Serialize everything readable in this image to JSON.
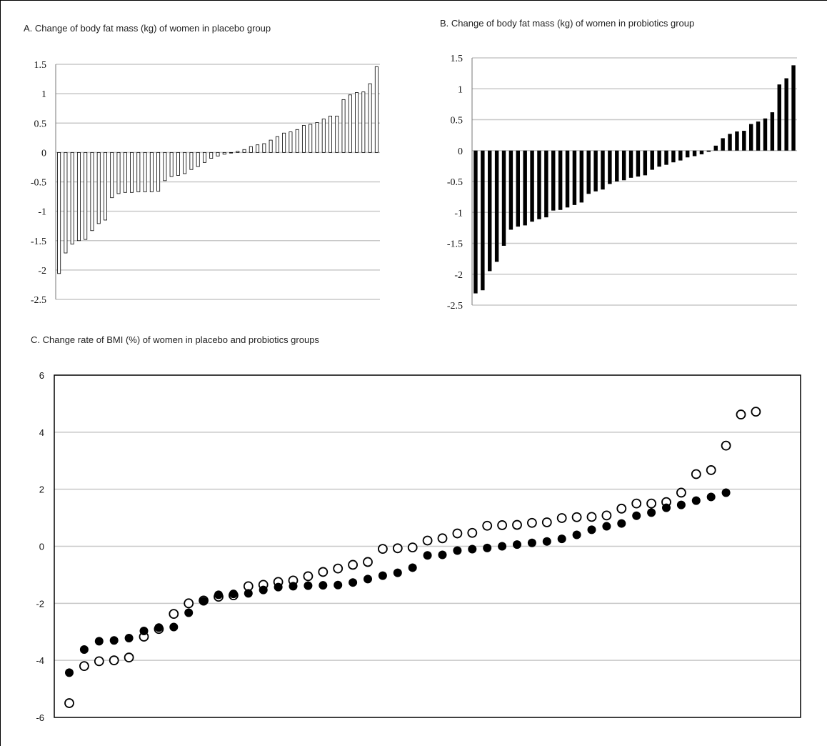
{
  "chart_data": [
    {
      "type": "bar",
      "title": "A. Change of body fat mass (kg) of women in placebo group",
      "ylim": [
        -2.5,
        1.5
      ],
      "yticks": [
        1.5,
        1,
        0.5,
        0,
        -0.5,
        -1,
        -1.5,
        -2,
        -2.5
      ],
      "ytick_labels": [
        "1.5",
        "1",
        "0.5",
        "0",
        "-0.5",
        "-1",
        "-1.5",
        "-2",
        "-2.5"
      ],
      "grid": true,
      "bar_style": "hollow",
      "values": [
        -2.06,
        -1.71,
        -1.56,
        -1.5,
        -1.48,
        -1.33,
        -1.21,
        -1.15,
        -0.77,
        -0.7,
        -0.68,
        -0.68,
        -0.67,
        -0.67,
        -0.67,
        -0.66,
        -0.48,
        -0.41,
        -0.39,
        -0.36,
        -0.29,
        -0.24,
        -0.17,
        -0.1,
        -0.06,
        -0.03,
        -0.01,
        0.02,
        0.05,
        0.1,
        0.13,
        0.15,
        0.21,
        0.27,
        0.33,
        0.35,
        0.39,
        0.46,
        0.48,
        0.51,
        0.57,
        0.62,
        0.62,
        0.9,
        0.98,
        1.02,
        1.03,
        1.17,
        1.46
      ]
    },
    {
      "type": "bar",
      "title": "B. Change of body fat mass (kg) of women in probiotics group",
      "ylim": [
        -2.5,
        1.5
      ],
      "yticks": [
        1.5,
        1,
        0.5,
        0,
        -0.5,
        -1,
        -1.5,
        -2,
        -2.5
      ],
      "ytick_labels": [
        "1.5",
        "1",
        "0.5",
        "0",
        "-0.5",
        "-1",
        "-1.5",
        "-2",
        "-2.5"
      ],
      "grid": true,
      "bar_style": "solid",
      "values": [
        -2.31,
        -2.26,
        -1.95,
        -1.8,
        -1.54,
        -1.28,
        -1.23,
        -1.21,
        -1.15,
        -1.11,
        -1.08,
        -0.97,
        -0.96,
        -0.92,
        -0.88,
        -0.84,
        -0.7,
        -0.66,
        -0.63,
        -0.54,
        -0.5,
        -0.48,
        -0.44,
        -0.42,
        -0.4,
        -0.31,
        -0.26,
        -0.23,
        -0.19,
        -0.16,
        -0.11,
        -0.09,
        -0.06,
        -0.02,
        0.08,
        0.2,
        0.27,
        0.31,
        0.32,
        0.43,
        0.47,
        0.52,
        0.62,
        1.07,
        1.17,
        1.38
      ]
    },
    {
      "type": "scatter",
      "title": "C. Change rate of BMI (%) of women in placebo and probiotics groups",
      "ylim": [
        -6,
        6
      ],
      "yticks": [
        6,
        4,
        2,
        0,
        -2,
        -4,
        -6
      ],
      "ytick_labels": [
        "6",
        "4",
        "2",
        "0",
        "-2",
        "-4",
        "-6"
      ],
      "grid": true,
      "series": [
        {
          "marker": "open-circle",
          "values": [
            -5.5,
            -4.2,
            -4.03,
            -4.0,
            -3.9,
            -3.17,
            -2.9,
            -2.37,
            -2.0,
            -1.9,
            -1.77,
            -1.72,
            -1.4,
            -1.35,
            -1.25,
            -1.2,
            -1.05,
            -0.9,
            -0.78,
            -0.65,
            -0.55,
            -0.09,
            -0.07,
            -0.04,
            0.2,
            0.28,
            0.45,
            0.47,
            0.72,
            0.74,
            0.75,
            0.82,
            0.84,
            0.99,
            1.02,
            1.03,
            1.08,
            1.32,
            1.5,
            1.5,
            1.55,
            1.88,
            2.53,
            2.67,
            3.53,
            4.62,
            4.72
          ]
        },
        {
          "marker": "filled-circle",
          "values": [
            -4.43,
            -3.62,
            -3.33,
            -3.3,
            -3.22,
            -2.97,
            -2.85,
            -2.83,
            -2.33,
            -1.93,
            -1.7,
            -1.67,
            -1.65,
            -1.53,
            -1.43,
            -1.4,
            -1.38,
            -1.37,
            -1.36,
            -1.27,
            -1.15,
            -1.03,
            -0.93,
            -0.75,
            -0.32,
            -0.3,
            -0.15,
            -0.1,
            -0.06,
            0.0,
            0.06,
            0.12,
            0.17,
            0.26,
            0.4,
            0.58,
            0.7,
            0.8,
            1.07,
            1.18,
            1.35,
            1.45,
            1.6,
            1.73,
            1.88
          ]
        }
      ]
    }
  ]
}
